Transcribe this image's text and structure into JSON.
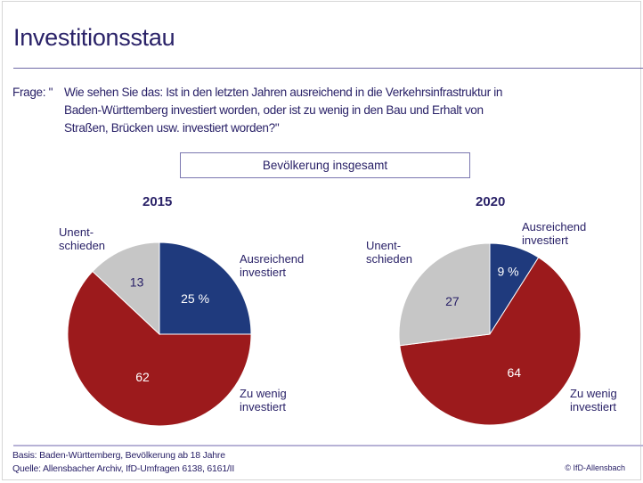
{
  "header": {
    "title": "Investitionsstau"
  },
  "question": {
    "label": "Frage: \"",
    "text": "Wie sehen Sie das: Ist in den letzten Jahren ausreichend in die Verkehrsinfrastruktur in\nBaden-Württemberg investiert worden, oder ist zu wenig in den Bau und Erhalt von\nStraßen, Brücken usw. investiert worden?\""
  },
  "group_label": "Bevölkerung insgesamt",
  "colors": {
    "ausreichend": "#1f3a7d",
    "zu_wenig": "#9c1a1c",
    "unentschieden": "#c6c6c6",
    "text": "#2a2268"
  },
  "chart_data": [
    {
      "type": "pie",
      "title": "2015",
      "slices": [
        {
          "key": "ausreichend",
          "label": "Ausreichend\ninvestiert",
          "value": 25,
          "value_label": "25 %"
        },
        {
          "key": "zu_wenig",
          "label": "Zu wenig\ninvestiert",
          "value": 62,
          "value_label": "62"
        },
        {
          "key": "unentschieden",
          "label": "Unent-\nschieden",
          "value": 13,
          "value_label": "13"
        }
      ]
    },
    {
      "type": "pie",
      "title": "2020",
      "slices": [
        {
          "key": "ausreichend",
          "label": "Ausreichend\ninvestiert",
          "value": 9,
          "value_label": "9 %"
        },
        {
          "key": "zu_wenig",
          "label": "Zu wenig\ninvestiert",
          "value": 64,
          "value_label": "64"
        },
        {
          "key": "unentschieden",
          "label": "Unent-\nschieden",
          "value": 27,
          "value_label": "27"
        }
      ]
    }
  ],
  "footer": {
    "basis": "Basis: Baden-Württemberg, Bevölkerung ab 18 Jahre",
    "source": "Quelle: Allensbacher Archiv, IfD-Umfragen 6138, 6161/II",
    "copyright": "© IfD-Allensbach"
  }
}
